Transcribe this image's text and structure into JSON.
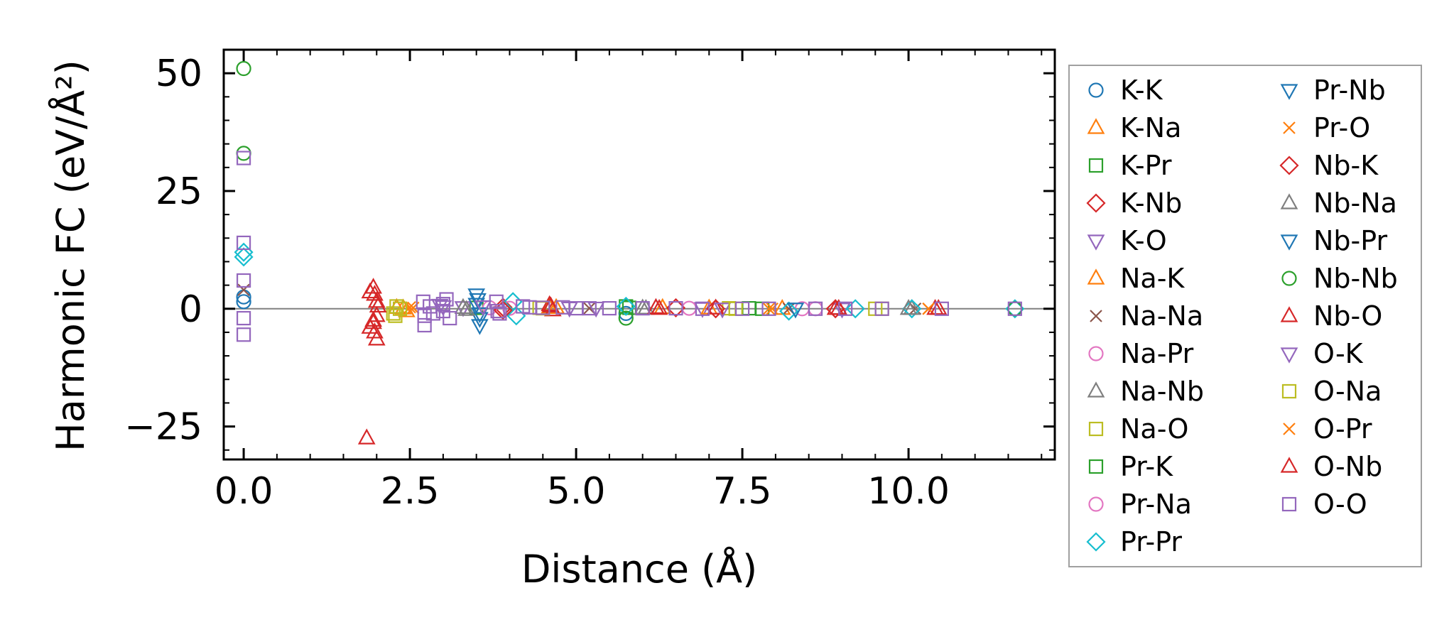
{
  "chart_data": {
    "type": "scatter",
    "title": "",
    "xlabel": "Distance (Å)",
    "ylabel": "Harmonic FC (eV/Å²)",
    "xlim": [
      -0.3,
      12.2
    ],
    "ylim": [
      -32,
      55
    ],
    "x_ticks": [
      "0.0",
      "2.5",
      "5.0",
      "7.5",
      "10.0"
    ],
    "x_tick_values": [
      0,
      2.5,
      5.0,
      7.5,
      10.0
    ],
    "y_ticks": [
      "50",
      "25",
      "0",
      "−25"
    ],
    "y_tick_values": [
      50,
      25,
      0,
      -25
    ],
    "zero_line": 0,
    "legend_position": "outside-right",
    "colors": {
      "blue": "#1f77b4",
      "orange": "#ff7f0e",
      "green": "#2ca02c",
      "red": "#d62728",
      "purple": "#9467bd",
      "brown": "#8c564b",
      "pink": "#e377c2",
      "gray": "#7f7f7f",
      "olive": "#bcbd22",
      "cyan": "#17becf",
      "axis": "#000000",
      "zero_line": "#808080"
    },
    "series": [
      {
        "name": "K-K",
        "marker": "circle",
        "color": "#1f77b4",
        "points": [
          [
            0,
            1.5
          ],
          [
            0,
            2.5
          ],
          [
            5.75,
            -1.0
          ],
          [
            11.6,
            0
          ]
        ]
      },
      {
        "name": "K-Na",
        "marker": "triangle-up",
        "color": "#ff7f0e",
        "points": [
          [
            2.3,
            0.2
          ],
          [
            2.45,
            -0.5
          ],
          [
            4.6,
            0.3
          ],
          [
            6.3,
            0.2
          ],
          [
            8.1,
            0
          ]
        ]
      },
      {
        "name": "K-Pr",
        "marker": "square",
        "color": "#2ca02c",
        "points": [
          [
            3.5,
            0.2
          ],
          [
            5.8,
            0.2
          ],
          [
            7.8,
            0
          ]
        ]
      },
      {
        "name": "K-Nb",
        "marker": "diamond",
        "color": "#d62728",
        "points": [
          [
            3.9,
            0.3
          ],
          [
            6.5,
            0.2
          ],
          [
            8.9,
            0
          ]
        ]
      },
      {
        "name": "K-O",
        "marker": "triangle-down",
        "color": "#9467bd",
        "points": [
          [
            2.95,
            0.8
          ],
          [
            3.3,
            0.3
          ],
          [
            4.9,
            0.2
          ],
          [
            6.9,
            0.1
          ],
          [
            9.0,
            0
          ]
        ]
      },
      {
        "name": "Na-K",
        "marker": "triangle-up",
        "color": "#ff7f0e",
        "points": [
          [
            2.4,
            0.1
          ],
          [
            4.7,
            0.2
          ],
          [
            7.0,
            0.1
          ]
        ]
      },
      {
        "name": "Na-Na",
        "marker": "x",
        "color": "#8c564b",
        "points": [
          [
            0,
            4.0
          ],
          [
            5.2,
            0.1
          ],
          [
            8.2,
            0
          ],
          [
            10.1,
            0
          ]
        ]
      },
      {
        "name": "Na-Pr",
        "marker": "circle",
        "color": "#e377c2",
        "points": [
          [
            3.7,
            0.2
          ],
          [
            6.7,
            0.1
          ],
          [
            8.6,
            0
          ]
        ]
      },
      {
        "name": "Na-Nb",
        "marker": "triangle-up",
        "color": "#7f7f7f",
        "points": [
          [
            3.3,
            0.2
          ],
          [
            6.0,
            0.1
          ],
          [
            10.05,
            0
          ]
        ]
      },
      {
        "name": "Na-O",
        "marker": "square",
        "color": "#bcbd22",
        "points": [
          [
            2.25,
            -1.0
          ],
          [
            2.3,
            0.5
          ],
          [
            4.45,
            0.2
          ],
          [
            7.3,
            0.1
          ],
          [
            9.6,
            0
          ]
        ]
      },
      {
        "name": "Pr-K",
        "marker": "square",
        "color": "#2ca02c",
        "points": [
          [
            5.75,
            0.5
          ],
          [
            7.6,
            0.1
          ]
        ]
      },
      {
        "name": "Pr-Na",
        "marker": "circle",
        "color": "#e377c2",
        "points": [
          [
            4.0,
            0.1
          ],
          [
            8.4,
            0
          ]
        ]
      },
      {
        "name": "Pr-Pr",
        "marker": "diamond",
        "color": "#17becf",
        "points": [
          [
            0,
            11.0
          ],
          [
            0,
            12.0
          ],
          [
            4.05,
            1.5
          ],
          [
            4.1,
            -1.5
          ],
          [
            5.75,
            0.5
          ],
          [
            8.2,
            -0.5
          ],
          [
            9.2,
            0
          ],
          [
            10.05,
            0
          ],
          [
            11.6,
            0
          ]
        ]
      },
      {
        "name": "Pr-Nb",
        "marker": "triangle-down",
        "color": "#1f77b4",
        "points": [
          [
            3.5,
            3.0
          ],
          [
            3.52,
            2.0
          ],
          [
            3.55,
            -2.0
          ],
          [
            3.55,
            -3.5
          ]
        ]
      },
      {
        "name": "Pr-O",
        "marker": "x",
        "color": "#ff7f0e",
        "points": [
          [
            2.5,
            0.3
          ],
          [
            7.9,
            0
          ],
          [
            10.3,
            0
          ]
        ]
      },
      {
        "name": "Nb-K",
        "marker": "diamond",
        "color": "#d62728",
        "points": [
          [
            3.9,
            -0.3
          ],
          [
            7.1,
            0
          ]
        ]
      },
      {
        "name": "Nb-Na",
        "marker": "triangle-up",
        "color": "#7f7f7f",
        "points": [
          [
            3.35,
            -0.2
          ],
          [
            6.05,
            0
          ],
          [
            10.0,
            0
          ]
        ]
      },
      {
        "name": "Nb-Pr",
        "marker": "triangle-down",
        "color": "#1f77b4",
        "points": [
          [
            3.5,
            1.0
          ],
          [
            3.55,
            -1.0
          ],
          [
            8.3,
            0
          ]
        ]
      },
      {
        "name": "Nb-Nb",
        "marker": "circle",
        "color": "#2ca02c",
        "points": [
          [
            0,
            51.0
          ],
          [
            0,
            33.0
          ],
          [
            5.75,
            -2.0
          ],
          [
            11.6,
            0
          ]
        ]
      },
      {
        "name": "Nb-O",
        "marker": "triangle-up",
        "color": "#d62728",
        "points": [
          [
            1.85,
            -27.5
          ],
          [
            1.9,
            -4.0
          ],
          [
            1.95,
            -2.5
          ],
          [
            1.95,
            4.5
          ],
          [
            1.97,
            3.0
          ],
          [
            1.97,
            -5.0
          ],
          [
            2.0,
            1.5
          ],
          [
            2.0,
            -1.5
          ],
          [
            2.0,
            -6.5
          ],
          [
            2.02,
            0.5
          ],
          [
            4.6,
            0.8
          ],
          [
            4.65,
            -0.3
          ],
          [
            6.2,
            0.2
          ],
          [
            7.1,
            0.1
          ],
          [
            8.9,
            0
          ],
          [
            10.4,
            0
          ]
        ]
      },
      {
        "name": "O-K",
        "marker": "triangle-down",
        "color": "#9467bd",
        "points": [
          [
            3.0,
            0.5
          ],
          [
            3.6,
            0.5
          ],
          [
            5.3,
            0.2
          ],
          [
            7.2,
            0
          ]
        ]
      },
      {
        "name": "O-Na",
        "marker": "square",
        "color": "#bcbd22",
        "points": [
          [
            2.28,
            -1.5
          ],
          [
            2.35,
            0.0
          ],
          [
            4.5,
            0.1
          ],
          [
            7.4,
            0
          ],
          [
            9.5,
            0
          ]
        ]
      },
      {
        "name": "O-Pr",
        "marker": "x",
        "color": "#ff7f0e",
        "points": [
          [
            2.55,
            0.2
          ],
          [
            7.95,
            0
          ],
          [
            10.3,
            0
          ]
        ]
      },
      {
        "name": "O-Nb",
        "marker": "triangle-up",
        "color": "#d62728",
        "points": [
          [
            1.9,
            3.5
          ],
          [
            1.95,
            -3.0
          ],
          [
            4.62,
            0.5
          ],
          [
            6.25,
            0
          ],
          [
            8.95,
            0
          ],
          [
            10.45,
            0
          ]
        ]
      },
      {
        "name": "O-O",
        "marker": "square",
        "color": "#9467bd",
        "points": [
          [
            0,
            32.0
          ],
          [
            0,
            14.0
          ],
          [
            0,
            6.0
          ],
          [
            0,
            -2.0
          ],
          [
            0,
            -5.5
          ],
          [
            2.7,
            1.5
          ],
          [
            2.72,
            -1.5
          ],
          [
            2.72,
            -3.5
          ],
          [
            2.8,
            0.5
          ],
          [
            2.85,
            -1.0
          ],
          [
            3.0,
            1.0
          ],
          [
            3.0,
            -0.5
          ],
          [
            3.05,
            2.0
          ],
          [
            3.1,
            -2.0
          ],
          [
            3.8,
            1.5
          ],
          [
            3.82,
            -0.5
          ],
          [
            3.85,
            -1.0
          ],
          [
            4.2,
            0.5
          ],
          [
            4.3,
            0.3
          ],
          [
            4.5,
            0.2
          ],
          [
            4.8,
            0.3
          ],
          [
            5.0,
            0.1
          ],
          [
            5.2,
            0.1
          ],
          [
            5.5,
            0.1
          ],
          [
            6.0,
            0.1
          ],
          [
            6.5,
            0.1
          ],
          [
            6.9,
            0
          ],
          [
            7.5,
            0
          ],
          [
            7.9,
            0
          ],
          [
            8.6,
            0
          ],
          [
            9.05,
            0
          ],
          [
            9.6,
            0
          ],
          [
            10.5,
            0
          ],
          [
            11.6,
            0
          ]
        ]
      }
    ]
  }
}
